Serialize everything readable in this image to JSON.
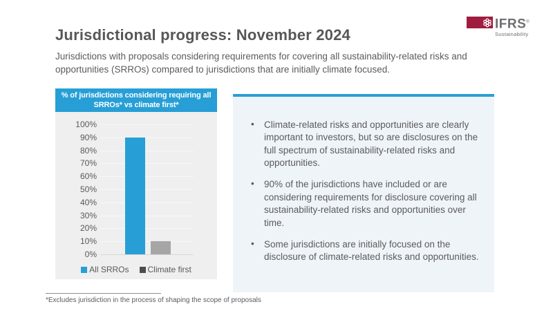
{
  "slide": {
    "title": "Jurisdictional progress: November 2024",
    "subtitle": "Jurisdictions with proposals considering requirements for covering all sustainability-related risks and opportunities (SRROs) compared to jurisdictions that are initially climate focused.",
    "footnote": "*Excludes jurisdiction in the process of shaping the scope of proposals"
  },
  "logo": {
    "brand": "IFRS",
    "trademark": "®",
    "sub": "Sustainability",
    "box_color": "#a01d3f",
    "icon": "hexagon-flower-icon"
  },
  "colors": {
    "accent_blue": "#279fd6",
    "chart_bg": "#efefef",
    "panel_bg": "#eff4f8",
    "text_gray": "#5a5b5d"
  },
  "panel": {
    "bullet_char": "•",
    "bullets": [
      "Climate-related risks and opportunities are clearly important to investors, but so are disclosures on the full spectrum of sustainability-related risks and opportunities.",
      "90% of the jurisdictions have included or are considering requirements for disclosure covering all sustainability-related risks and opportunities over time.",
      "Some jurisdictions are initially focused on the disclosure of climate-related risks and opportunities."
    ]
  },
  "chart_data": {
    "type": "bar",
    "title": "% of jurisdictions considering requiring all SRROs* vs climate first*",
    "categories": [
      "All SRROs",
      "Climate first"
    ],
    "values": [
      90,
      10
    ],
    "bar_colors": [
      "#279fd6",
      "#a6a6a6"
    ],
    "legend": [
      {
        "label": "All SRROs",
        "marker_color": "#279fd6"
      },
      {
        "label": "Climate first",
        "marker_color": "#4d4d4d"
      }
    ],
    "legend_position": "bottom",
    "ylim": [
      0,
      100
    ],
    "ytick_step": 10,
    "ytick_labels": [
      "0%",
      "10%",
      "20%",
      "30%",
      "40%",
      "50%",
      "60%",
      "70%",
      "80%",
      "90%",
      "100%"
    ],
    "grid": true,
    "xlabel": "",
    "ylabel": ""
  }
}
